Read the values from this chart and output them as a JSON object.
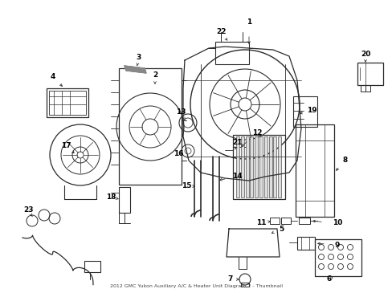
{
  "title": "2012 GMC Yukon Auxiliary A/C & Heater Unit Diagram 2 - Thumbnail",
  "bg_color": "#ffffff",
  "line_color": "#2a2a2a",
  "label_color": "#000000",
  "fig_width": 4.89,
  "fig_height": 3.6,
  "dpi": 100
}
